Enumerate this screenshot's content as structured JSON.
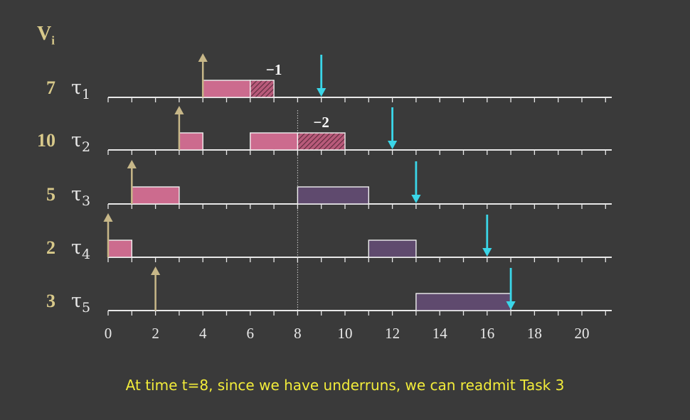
{
  "header": {
    "label": "V",
    "subscript": "i"
  },
  "caption": "At time t=8, since we have underruns, we can readmit Task 3",
  "colors": {
    "background": "#3a3a3a",
    "executed_block": "#cc6b8e",
    "readmitted_block": "#5f4a6e",
    "underrun_block": "#cc6b8e",
    "release_arrow": "#c7b788",
    "deadline_arrow": "#3ad6e8",
    "value_text": "#d8c98a",
    "axis": "#e8e8e8"
  },
  "axis": {
    "min": 0,
    "max": 21,
    "tick_labels": [
      "0",
      "2",
      "4",
      "6",
      "8",
      "10",
      "12",
      "14",
      "16",
      "18",
      "20"
    ]
  },
  "marker_time": 8,
  "tasks": [
    {
      "name": "τ",
      "index": "1",
      "value": "7",
      "release": 4,
      "deadline": 9,
      "blocks": [
        {
          "start": 4,
          "end": 6,
          "kind": "executed"
        },
        {
          "start": 6,
          "end": 7,
          "kind": "underrun"
        }
      ],
      "underrun_label": "−1",
      "underrun_label_at": 7
    },
    {
      "name": "τ",
      "index": "2",
      "value": "10",
      "release": 3,
      "deadline": 12,
      "blocks": [
        {
          "start": 3,
          "end": 4,
          "kind": "executed"
        },
        {
          "start": 6,
          "end": 8,
          "kind": "executed"
        },
        {
          "start": 8,
          "end": 10,
          "kind": "underrun"
        }
      ],
      "underrun_label": "−2",
      "underrun_label_at": 9
    },
    {
      "name": "τ",
      "index": "3",
      "value": "5",
      "release": 1,
      "deadline": 13,
      "blocks": [
        {
          "start": 1,
          "end": 3,
          "kind": "executed"
        },
        {
          "start": 8,
          "end": 11,
          "kind": "readmitted"
        }
      ]
    },
    {
      "name": "τ",
      "index": "4",
      "value": "2",
      "release": 0,
      "deadline": 16,
      "blocks": [
        {
          "start": 0,
          "end": 1,
          "kind": "executed"
        },
        {
          "start": 11,
          "end": 13,
          "kind": "readmitted"
        }
      ]
    },
    {
      "name": "τ",
      "index": "5",
      "value": "3",
      "release": 2,
      "deadline": 17,
      "blocks": [
        {
          "start": 13,
          "end": 17,
          "kind": "readmitted"
        }
      ]
    }
  ]
}
